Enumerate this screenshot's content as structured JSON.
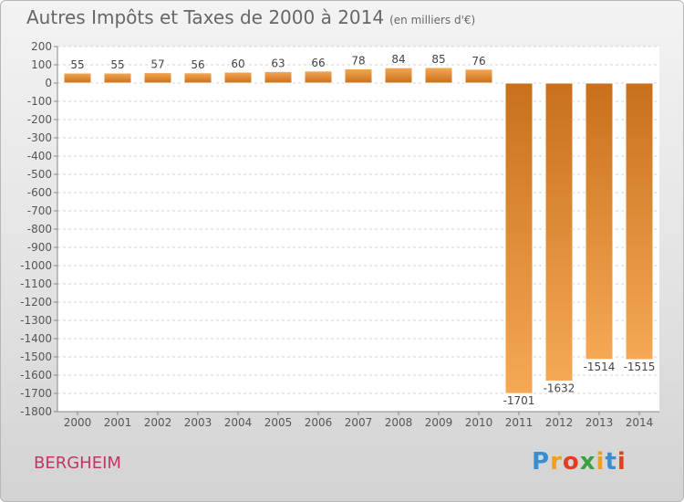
{
  "title": {
    "main": "Autres Impôts et Taxes de 2000 à 2014",
    "unit": "(en milliers d'€)"
  },
  "chart_data": {
    "type": "bar",
    "categories": [
      "2000",
      "2001",
      "2002",
      "2003",
      "2004",
      "2005",
      "2006",
      "2007",
      "2008",
      "2009",
      "2010",
      "2011",
      "2012",
      "2013",
      "2014"
    ],
    "values": [
      55,
      55,
      57,
      56,
      60,
      63,
      66,
      78,
      84,
      85,
      76,
      -1701,
      -1632,
      -1514,
      -1515
    ],
    "value_labels": [
      "55",
      "55",
      "57",
      "56",
      "60",
      "63",
      "66",
      "78",
      "84",
      "85",
      "76",
      "-1701",
      "-1632",
      "-1514",
      "-1515"
    ],
    "ylim": [
      -1800,
      200
    ],
    "yticks": [
      200,
      100,
      0,
      -100,
      -200,
      -300,
      -400,
      -500,
      -600,
      -700,
      -800,
      -900,
      -1000,
      -1100,
      -1200,
      -1300,
      -1400,
      -1500,
      -1600,
      -1700,
      -1800
    ],
    "grid": "horizontal dashed",
    "bar_color_top": "#f5a855",
    "bar_color_bottom": "#c8701c"
  },
  "footer": {
    "town": "BERGHEIM",
    "brand_letters": [
      "P",
      "r",
      "o",
      "x",
      "i",
      "t",
      "i"
    ],
    "brand_colors": [
      "#3a8ed0",
      "#f0a020",
      "#e04020",
      "#3aa040",
      "#f0a020",
      "#3a8ed0",
      "#e04020"
    ]
  }
}
